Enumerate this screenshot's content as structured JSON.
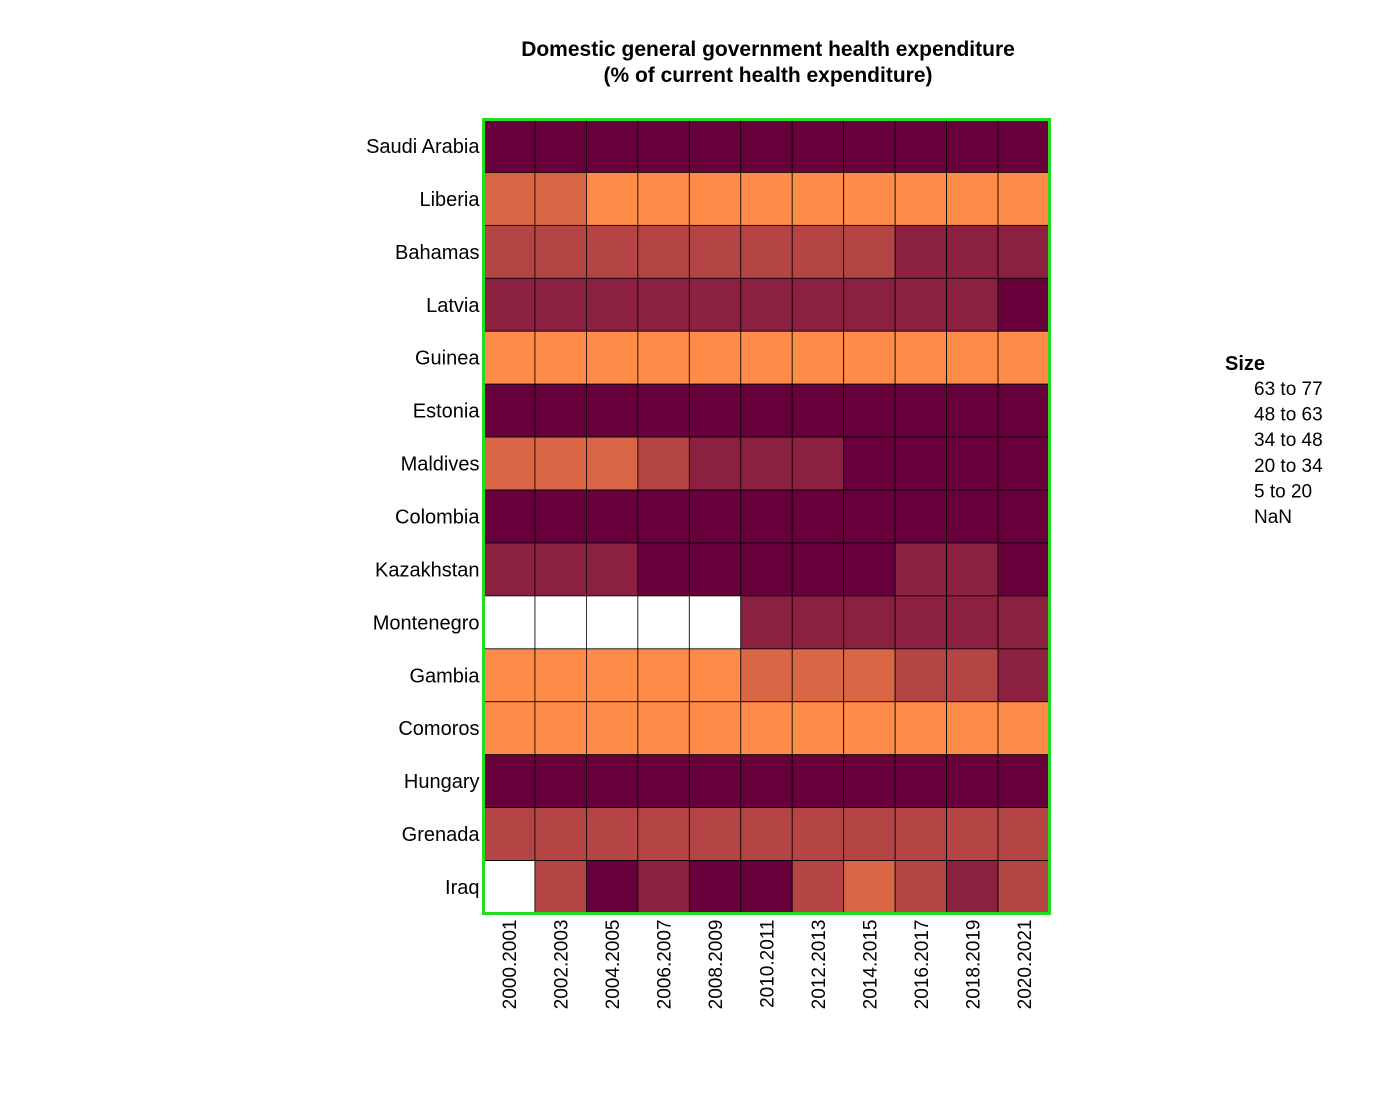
{
  "chart_data": {
    "type": "heatmap",
    "title": "Domestic general government health expenditure",
    "subtitle": "(% of current health expenditure)",
    "categories": [
      "2000.2001",
      "2002.2003",
      "2004.2005",
      "2006.2007",
      "2008.2009",
      "2010.2011",
      "2012.2013",
      "2014.2015",
      "2016.2017",
      "2018.2019",
      "2020.2021"
    ],
    "rows": [
      {
        "name": "Saudi Arabia",
        "values": [
          70,
          70,
          70,
          70,
          70,
          70,
          70,
          70,
          70,
          70,
          70
        ]
      },
      {
        "name": "Liberia",
        "values": [
          25,
          25,
          12,
          12,
          12,
          12,
          12,
          12,
          12,
          12,
          12
        ]
      },
      {
        "name": "Bahamas",
        "values": [
          40,
          40,
          40,
          40,
          40,
          40,
          40,
          40,
          55,
          55,
          55
        ]
      },
      {
        "name": "Latvia",
        "values": [
          55,
          55,
          55,
          55,
          55,
          55,
          55,
          55,
          55,
          55,
          70
        ]
      },
      {
        "name": "Guinea",
        "values": [
          12,
          12,
          12,
          12,
          12,
          12,
          12,
          12,
          12,
          12,
          12
        ]
      },
      {
        "name": "Estonia",
        "values": [
          70,
          70,
          70,
          70,
          70,
          70,
          70,
          70,
          70,
          70,
          70
        ]
      },
      {
        "name": "Maldives",
        "values": [
          25,
          25,
          25,
          40,
          55,
          55,
          55,
          70,
          70,
          70,
          70
        ]
      },
      {
        "name": "Colombia",
        "values": [
          70,
          70,
          70,
          70,
          70,
          70,
          70,
          70,
          70,
          70,
          70
        ]
      },
      {
        "name": "Kazakhstan",
        "values": [
          55,
          55,
          55,
          70,
          70,
          70,
          70,
          70,
          55,
          55,
          70
        ]
      },
      {
        "name": "Montenegro",
        "values": [
          null,
          null,
          null,
          null,
          null,
          55,
          55,
          55,
          55,
          55,
          55
        ]
      },
      {
        "name": "Gambia",
        "values": [
          12,
          12,
          12,
          12,
          12,
          25,
          25,
          25,
          40,
          40,
          55
        ]
      },
      {
        "name": "Comoros",
        "values": [
          12,
          12,
          12,
          12,
          12,
          12,
          12,
          12,
          12,
          12,
          12
        ]
      },
      {
        "name": "Hungary",
        "values": [
          70,
          70,
          70,
          70,
          70,
          70,
          70,
          70,
          70,
          70,
          70
        ]
      },
      {
        "name": "Grenada",
        "values": [
          40,
          40,
          40,
          40,
          40,
          40,
          40,
          40,
          40,
          40,
          40
        ]
      },
      {
        "name": "Iraq",
        "values": [
          null,
          40,
          70,
          55,
          70,
          70,
          40,
          25,
          40,
          55,
          40
        ]
      }
    ],
    "legend": {
      "title": "Size",
      "placement": "right",
      "bins": [
        {
          "label_from": "63",
          "label_to_word": "to",
          "label_to": "77",
          "min": 63,
          "max": 77,
          "color": "#67003b"
        },
        {
          "label_from": "48",
          "label_to_word": "to",
          "label_to": "63",
          "min": 48,
          "max": 63,
          "color": "#8b2040"
        },
        {
          "label_from": "34",
          "label_to_word": "to",
          "label_to": "48",
          "min": 34,
          "max": 48,
          "color": "#b54544"
        },
        {
          "label_from": "20",
          "label_to_word": "to",
          "label_to": "34",
          "min": 20,
          "max": 34,
          "color": "#d96645"
        },
        {
          "label_from": "5",
          "label_to_word": "to",
          "label_to": "20",
          "min": 5,
          "max": 20,
          "color": "#fe8b48"
        },
        {
          "label_from": "NaN",
          "label_to_word": "",
          "label_to": "",
          "min": null,
          "max": null,
          "color": "#ffffff"
        }
      ]
    },
    "frame_color": "#22dd22"
  }
}
